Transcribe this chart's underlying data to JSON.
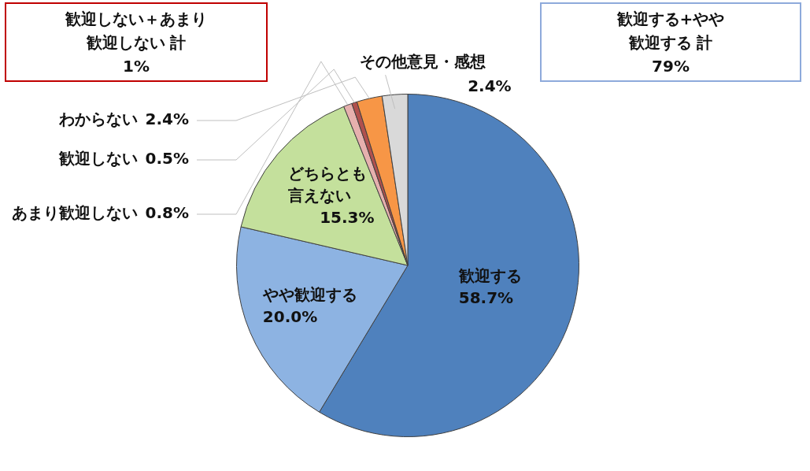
{
  "chart_data": {
    "type": "pie",
    "categories": [
      "歓迎する",
      "やや歓迎する",
      "どちらとも言えない",
      "あまり歓迎しない",
      "歓迎しない",
      "わからない",
      "その他意見・感想"
    ],
    "values": [
      58.7,
      20.0,
      15.3,
      0.8,
      0.5,
      2.4,
      2.4
    ],
    "value_labels": [
      "58.7%",
      "20.0%",
      "15.3%",
      "0.8%",
      "0.5%",
      "2.4%",
      "2.4%"
    ],
    "colors": [
      "#4f81bd",
      "#8db3e2",
      "#c4e09c",
      "#e6b0ae",
      "#b0504e",
      "#f79646",
      "#d9d9d9"
    ],
    "legend": false,
    "annotations": [
      "歓迎しない＋あまり歓迎しない 計",
      "1%",
      "歓迎する+やや歓迎する 計",
      "79%"
    ]
  }
}
